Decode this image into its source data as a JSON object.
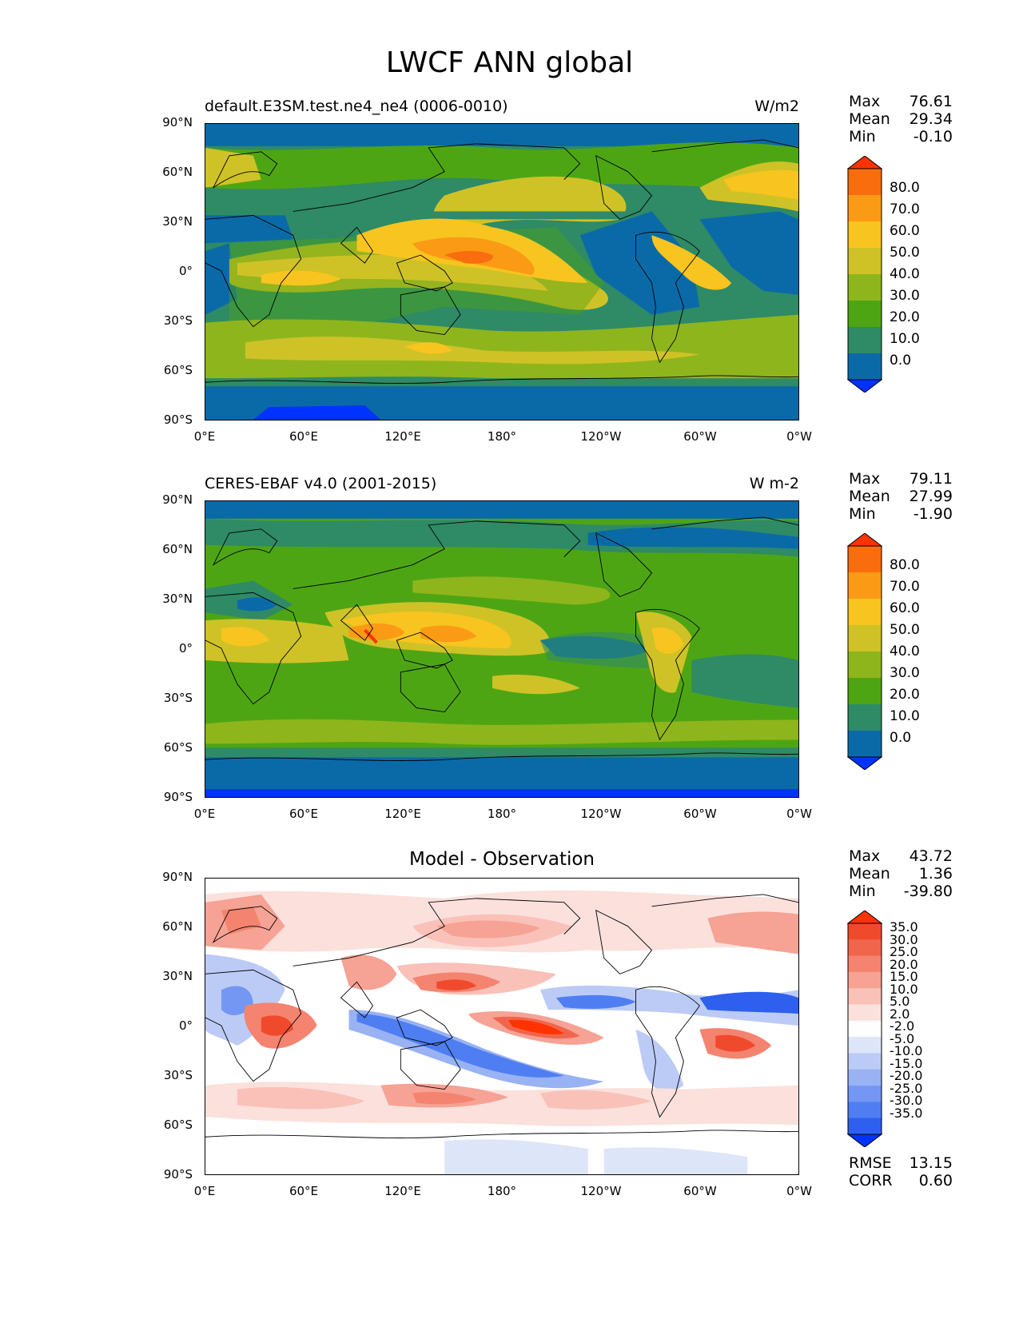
{
  "figure": {
    "title": "LWCF ANN global"
  },
  "axes": {
    "lat_labels": [
      "90°N",
      "60°N",
      "30°N",
      "0°",
      "30°S",
      "60°S",
      "90°S"
    ],
    "lon_labels": [
      "0°E",
      "60°E",
      "120°E",
      "180°",
      "120°W",
      "60°W",
      "0°W"
    ]
  },
  "panels": [
    {
      "title_left": "default.E3SM.test.ne4_ne4 (0006-0010)",
      "title_right": "W/m2",
      "stats": {
        "max_label": "Max",
        "max": "76.61",
        "mean_label": "Mean",
        "mean": "29.34",
        "min_label": "Min",
        "min": "-0.10"
      },
      "colorbar_labels": [
        "80.0",
        "70.0",
        "60.0",
        "50.0",
        "40.0",
        "30.0",
        "20.0",
        "10.0",
        "0.0"
      ]
    },
    {
      "title_left": "CERES-EBAF v4.0 (2001-2015)",
      "title_right": "W m-2",
      "stats": {
        "max_label": "Max",
        "max": "79.11",
        "mean_label": "Mean",
        "mean": "27.99",
        "min_label": "Min",
        "min": "-1.90"
      },
      "colorbar_labels": [
        "80.0",
        "70.0",
        "60.0",
        "50.0",
        "40.0",
        "30.0",
        "20.0",
        "10.0",
        "0.0"
      ]
    },
    {
      "title_center": "Model - Observation",
      "stats": {
        "max_label": "Max",
        "max": "43.72",
        "mean_label": "Mean",
        "mean": "1.36",
        "min_label": "Min",
        "min": "-39.80"
      },
      "colorbar_labels": [
        "35.0",
        "30.0",
        "25.0",
        "20.0",
        "15.0",
        "10.0",
        "5.0",
        "2.0",
        "-2.0",
        "-5.0",
        "-10.0",
        "-15.0",
        "-20.0",
        "-25.0",
        "-30.0",
        "-35.0"
      ],
      "metrics": {
        "rmse_label": "RMSE",
        "rmse": "13.15",
        "corr_label": "CORR",
        "corr": "0.60"
      }
    }
  ],
  "colors": {
    "abs_levels": [
      "#0033ff",
      "#0a6aa8",
      "#2f8a66",
      "#4ea514",
      "#8fb51c",
      "#cfc227",
      "#f7c420",
      "#fb9a15",
      "#f96d0e",
      "#ff3300"
    ],
    "diff_levels": [
      "#0033ff",
      "#2e5fef",
      "#4e7ef2",
      "#7397f2",
      "#98b2f4",
      "#bccbf6",
      "#dde5f9",
      "#ffffff",
      "#fbe0dc",
      "#f9c1b8",
      "#f6a294",
      "#f48370",
      "#f2654d",
      "#f04a2c",
      "#ff3300"
    ]
  }
}
